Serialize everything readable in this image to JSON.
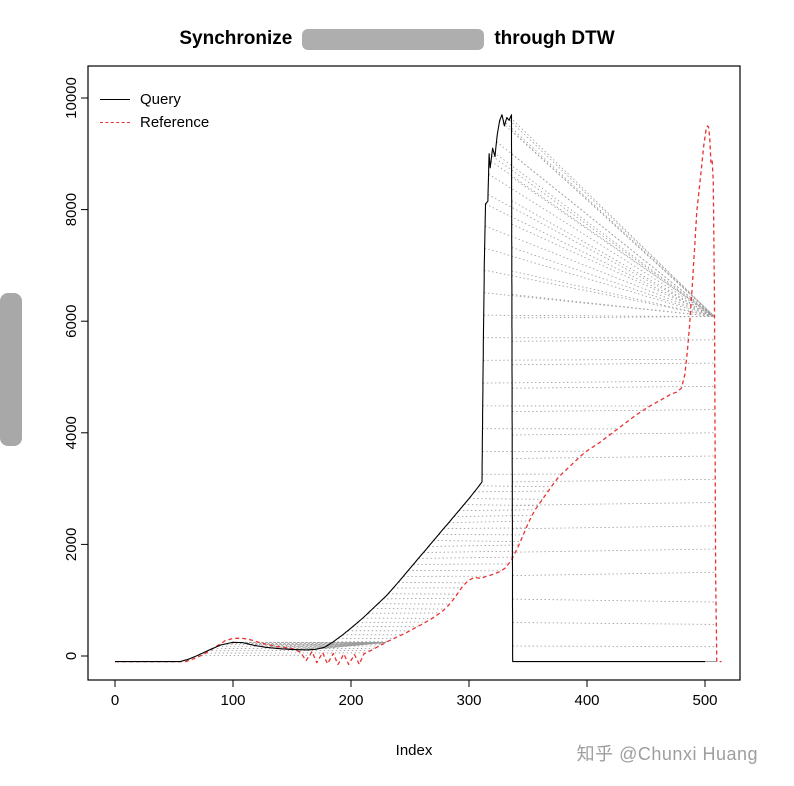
{
  "title": {
    "prefix": "Synchronize",
    "suffix": "through DTW"
  },
  "watermark": "知乎 @Chunxi Huang",
  "chart_data": {
    "type": "line",
    "title": "Synchronize [redacted] through DTW",
    "xlabel": "Index",
    "ylabel": "",
    "xlim": [
      0,
      530
    ],
    "ylim": [
      -300,
      10400
    ],
    "xticks": [
      0,
      100,
      200,
      300,
      400,
      500
    ],
    "yticks": [
      0,
      2000,
      4000,
      6000,
      8000,
      10000
    ],
    "grid": false,
    "legend": {
      "position": "top-left",
      "entries": [
        {
          "label": "Query",
          "color": "#000000",
          "dash": "solid"
        },
        {
          "label": "Reference",
          "color": "#e93232",
          "dash": "dashed"
        }
      ]
    },
    "alignment": {
      "description": "DTW warping match lines connecting query samples to reference samples",
      "color": "#9a9a9a",
      "style": "dotted"
    },
    "series": [
      {
        "name": "Query",
        "color": "#000000",
        "style": "solid",
        "points": [
          [
            0,
            -100
          ],
          [
            55,
            -100
          ],
          [
            62,
            -60
          ],
          [
            70,
            10
          ],
          [
            80,
            110
          ],
          [
            90,
            200
          ],
          [
            100,
            245
          ],
          [
            108,
            240
          ],
          [
            118,
            190
          ],
          [
            128,
            155
          ],
          [
            140,
            130
          ],
          [
            152,
            115
          ],
          [
            163,
            110
          ],
          [
            170,
            118
          ],
          [
            178,
            160
          ],
          [
            185,
            255
          ],
          [
            193,
            380
          ],
          [
            200,
            500
          ],
          [
            210,
            680
          ],
          [
            220,
            880
          ],
          [
            230,
            1080
          ],
          [
            240,
            1320
          ],
          [
            250,
            1570
          ],
          [
            260,
            1820
          ],
          [
            270,
            2070
          ],
          [
            280,
            2320
          ],
          [
            290,
            2570
          ],
          [
            300,
            2820
          ],
          [
            306,
            2980
          ],
          [
            311,
            3120
          ],
          [
            312,
            5300
          ],
          [
            313,
            7050
          ],
          [
            314,
            8100
          ],
          [
            316,
            8150
          ],
          [
            317,
            9000
          ],
          [
            318,
            8750
          ],
          [
            320,
            9100
          ],
          [
            322,
            8950
          ],
          [
            324,
            9350
          ],
          [
            326,
            9600
          ],
          [
            328,
            9700
          ],
          [
            330,
            9500
          ],
          [
            332,
            9650
          ],
          [
            334,
            9600
          ],
          [
            336,
            9700
          ],
          [
            337,
            -100
          ],
          [
            500,
            -100
          ]
        ]
      },
      {
        "name": "Reference",
        "color": "#e93232",
        "style": "dashed",
        "points": [
          [
            0,
            -100
          ],
          [
            60,
            -100
          ],
          [
            68,
            -40
          ],
          [
            76,
            40
          ],
          [
            85,
            160
          ],
          [
            93,
            270
          ],
          [
            100,
            315
          ],
          [
            107,
            320
          ],
          [
            114,
            295
          ],
          [
            121,
            250
          ],
          [
            129,
            205
          ],
          [
            136,
            175
          ],
          [
            143,
            155
          ],
          [
            150,
            135
          ],
          [
            157,
            70
          ],
          [
            162,
            -80
          ],
          [
            167,
            80
          ],
          [
            171,
            -120
          ],
          [
            176,
            60
          ],
          [
            180,
            -140
          ],
          [
            185,
            45
          ],
          [
            189,
            -150
          ],
          [
            194,
            35
          ],
          [
            198,
            -150
          ],
          [
            203,
            25
          ],
          [
            207,
            -150
          ],
          [
            211,
            40
          ],
          [
            217,
            100
          ],
          [
            224,
            180
          ],
          [
            231,
            260
          ],
          [
            239,
            340
          ],
          [
            247,
            420
          ],
          [
            254,
            500
          ],
          [
            262,
            590
          ],
          [
            270,
            690
          ],
          [
            278,
            810
          ],
          [
            285,
            960
          ],
          [
            290,
            1110
          ],
          [
            295,
            1260
          ],
          [
            300,
            1360
          ],
          [
            305,
            1410
          ],
          [
            310,
            1390
          ],
          [
            315,
            1430
          ],
          [
            320,
            1460
          ],
          [
            326,
            1510
          ],
          [
            331,
            1580
          ],
          [
            336,
            1720
          ],
          [
            341,
            1930
          ],
          [
            346,
            2170
          ],
          [
            351,
            2420
          ],
          [
            356,
            2620
          ],
          [
            361,
            2770
          ],
          [
            366,
            2920
          ],
          [
            371,
            3070
          ],
          [
            376,
            3210
          ],
          [
            381,
            3310
          ],
          [
            386,
            3410
          ],
          [
            391,
            3510
          ],
          [
            396,
            3610
          ],
          [
            401,
            3690
          ],
          [
            406,
            3760
          ],
          [
            411,
            3830
          ],
          [
            416,
            3910
          ],
          [
            421,
            3990
          ],
          [
            426,
            4070
          ],
          [
            431,
            4150
          ],
          [
            436,
            4230
          ],
          [
            441,
            4310
          ],
          [
            446,
            4380
          ],
          [
            451,
            4450
          ],
          [
            456,
            4510
          ],
          [
            461,
            4570
          ],
          [
            466,
            4630
          ],
          [
            471,
            4690
          ],
          [
            476,
            4730
          ],
          [
            480,
            4800
          ],
          [
            483,
            5050
          ],
          [
            485,
            5450
          ],
          [
            487,
            5950
          ],
          [
            489,
            6550
          ],
          [
            491,
            7250
          ],
          [
            493,
            7950
          ],
          [
            495,
            8350
          ],
          [
            497,
            8750
          ],
          [
            499,
            9150
          ],
          [
            501,
            9450
          ],
          [
            502,
            9500
          ],
          [
            503,
            9480
          ],
          [
            504,
            9300
          ],
          [
            505,
            8850
          ],
          [
            506,
            8900
          ],
          [
            507,
            8500
          ],
          [
            508,
            6500
          ],
          [
            509,
            1500
          ],
          [
            510,
            -100
          ],
          [
            514,
            -100
          ]
        ]
      }
    ]
  }
}
